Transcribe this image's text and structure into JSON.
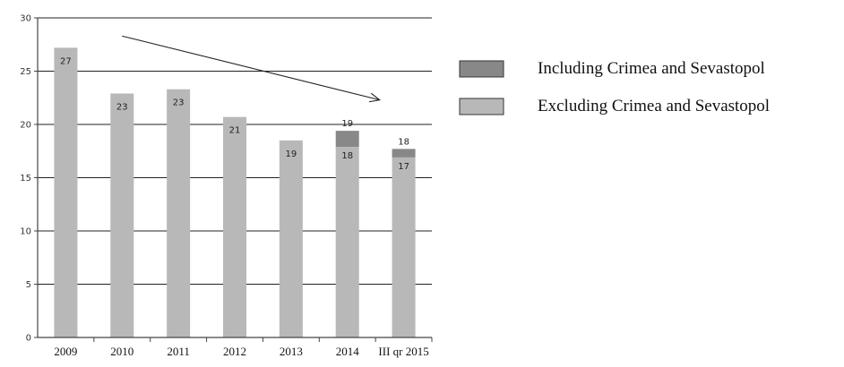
{
  "chart_data": {
    "type": "bar",
    "stacked": true,
    "categories": [
      "2009",
      "2010",
      "2011",
      "2012",
      "2013",
      "2014",
      "III qr 2015"
    ],
    "series": [
      {
        "name": "Excluding Crimea and Sevastopol",
        "color": "#b8b8b8",
        "values": [
          27.2,
          22.9,
          23.3,
          20.7,
          18.5,
          17.9,
          16.9
        ],
        "labels": [
          "27",
          "23",
          "23",
          "21",
          "19",
          "18",
          "17"
        ]
      },
      {
        "name": "Including Crimea and Sevastopol",
        "color": "#888888",
        "values": [
          0,
          0,
          0,
          0,
          0,
          1.5,
          0.8
        ],
        "labels": [
          "",
          "",
          "",
          "",
          "",
          "19",
          "18"
        ]
      }
    ],
    "ylim": [
      0,
      30
    ],
    "yticks": [
      "0",
      "5",
      "10",
      "15",
      "20",
      "25",
      "30"
    ],
    "grid": true,
    "legend_position": "right",
    "legend_order": [
      "Including Crimea and Sevastopol",
      "Excluding Crimea and Sevastopol"
    ],
    "annotations": [
      {
        "type": "trend-arrow",
        "from": {
          "x": "2010",
          "y": 28.3
        },
        "to": {
          "x": "2014",
          "y": 22.3
        }
      }
    ]
  }
}
